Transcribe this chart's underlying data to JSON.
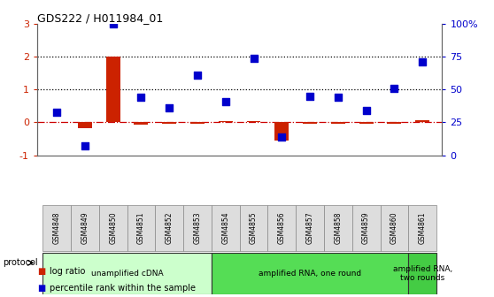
{
  "title": "GDS222 / H011984_01",
  "samples": [
    "GSM4848",
    "GSM4849",
    "GSM4850",
    "GSM4851",
    "GSM4852",
    "GSM4853",
    "GSM4854",
    "GSM4855",
    "GSM4856",
    "GSM4857",
    "GSM4858",
    "GSM4859",
    "GSM4860",
    "GSM4861"
  ],
  "log_ratio": [
    0.0,
    -0.18,
    2.0,
    -0.07,
    -0.05,
    -0.05,
    0.05,
    0.05,
    -0.55,
    -0.05,
    -0.03,
    -0.03,
    -0.03,
    0.07
  ],
  "percentile_pct": [
    33,
    7,
    100,
    44,
    36,
    61,
    41,
    74,
    14,
    45,
    44,
    34,
    51,
    71
  ],
  "ylim_left": [
    -1,
    3
  ],
  "ylim_right": [
    0,
    100
  ],
  "yticks_left": [
    -1,
    0,
    1,
    2,
    3
  ],
  "yticks_right": [
    0,
    25,
    50,
    75,
    100
  ],
  "ytick_labels_right": [
    "0",
    "25",
    "50",
    "75",
    "100%"
  ],
  "hlines": [
    {
      "y": 0,
      "style": "dashdot",
      "color": "#cc0000",
      "lw": 0.9
    },
    {
      "y": 1,
      "style": "dotted",
      "color": "#000000",
      "lw": 0.9
    },
    {
      "y": 2,
      "style": "dotted",
      "color": "#000000",
      "lw": 0.9
    }
  ],
  "bar_color": "#cc2200",
  "dot_color": "#0000cc",
  "bar_width": 0.5,
  "dot_size": 35,
  "protocol_groups": [
    {
      "label": "unamplified cDNA",
      "start": 0,
      "end": 5,
      "color": "#ccffcc"
    },
    {
      "label": "amplified RNA, one round",
      "start": 6,
      "end": 12,
      "color": "#55dd55"
    },
    {
      "label": "amplified RNA,\ntwo rounds",
      "start": 13,
      "end": 13,
      "color": "#44cc44"
    }
  ],
  "legend_items": [
    {
      "label": "log ratio",
      "color": "#cc2200"
    },
    {
      "label": "percentile rank within the sample",
      "color": "#0000cc"
    }
  ],
  "protocol_label": "protocol",
  "bg_color": "#ffffff"
}
